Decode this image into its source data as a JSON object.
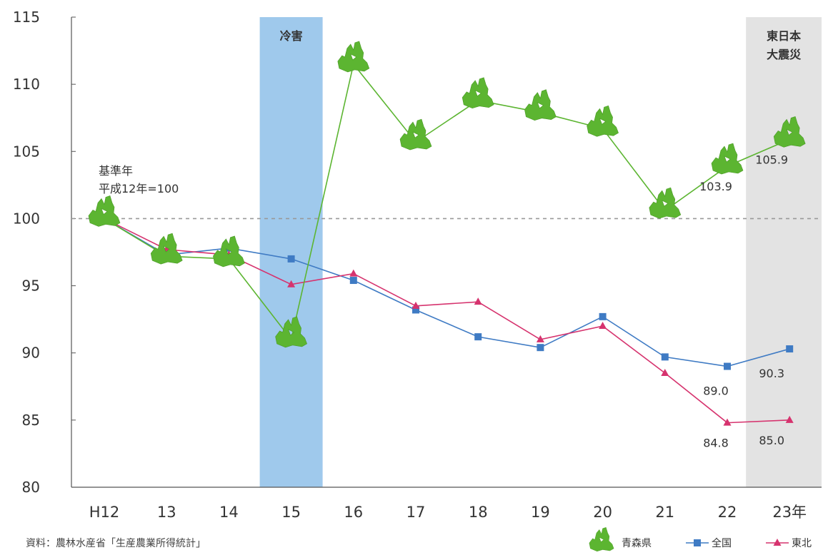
{
  "chart_data": {
    "type": "line",
    "title": "",
    "xlabel": "",
    "ylabel": "",
    "ylim": [
      80,
      115
    ],
    "yticks": [
      80,
      85,
      90,
      95,
      100,
      105,
      110,
      115
    ],
    "categories": [
      "H12",
      "13",
      "14",
      "15",
      "16",
      "17",
      "18",
      "19",
      "20",
      "21",
      "22",
      "23年"
    ],
    "grid": false,
    "reference_line": {
      "value": 100,
      "style": "dashed",
      "color": "#999999"
    },
    "legend_position": "bottom-right",
    "series": [
      {
        "name": "青森県",
        "color": "#5cb531",
        "marker": "aomori-shape",
        "values": [
          100.0,
          97.2,
          97.0,
          91.0,
          111.5,
          105.7,
          108.8,
          107.9,
          106.7,
          100.6,
          103.9,
          105.9
        ]
      },
      {
        "name": "全国",
        "color": "#3f7bc4",
        "marker": "square",
        "values": [
          100.0,
          97.3,
          97.8,
          97.0,
          95.4,
          93.2,
          91.2,
          90.4,
          92.7,
          89.7,
          89.0,
          90.3
        ]
      },
      {
        "name": "東北",
        "color": "#d6336e",
        "marker": "triangle",
        "values": [
          100.0,
          97.7,
          97.3,
          95.1,
          95.9,
          93.5,
          93.8,
          91.0,
          92.0,
          88.5,
          84.8,
          85.0
        ]
      }
    ],
    "highlight_bands": [
      {
        "category": "15",
        "label": "冷害",
        "color": "#9fc9ec"
      },
      {
        "category": "23年",
        "label_lines": [
          "東日本",
          "大震災"
        ],
        "color": "#e3e3e3"
      }
    ],
    "annotations": [
      {
        "lines": [
          "基準年",
          "平成12年=100"
        ],
        "category": "H12"
      },
      {
        "text": "103.9",
        "series": "青森県",
        "category": "22"
      },
      {
        "text": "105.9",
        "series": "青森県",
        "category": "23年"
      },
      {
        "text": "89.0",
        "series": "全国",
        "category": "22"
      },
      {
        "text": "90.3",
        "series": "全国",
        "category": "23年"
      },
      {
        "text": "84.8",
        "series": "東北",
        "category": "22"
      },
      {
        "text": "85.0",
        "series": "東北",
        "category": "23年"
      }
    ],
    "source_note": "資料：農林水産省「生産農業所得統計」"
  }
}
